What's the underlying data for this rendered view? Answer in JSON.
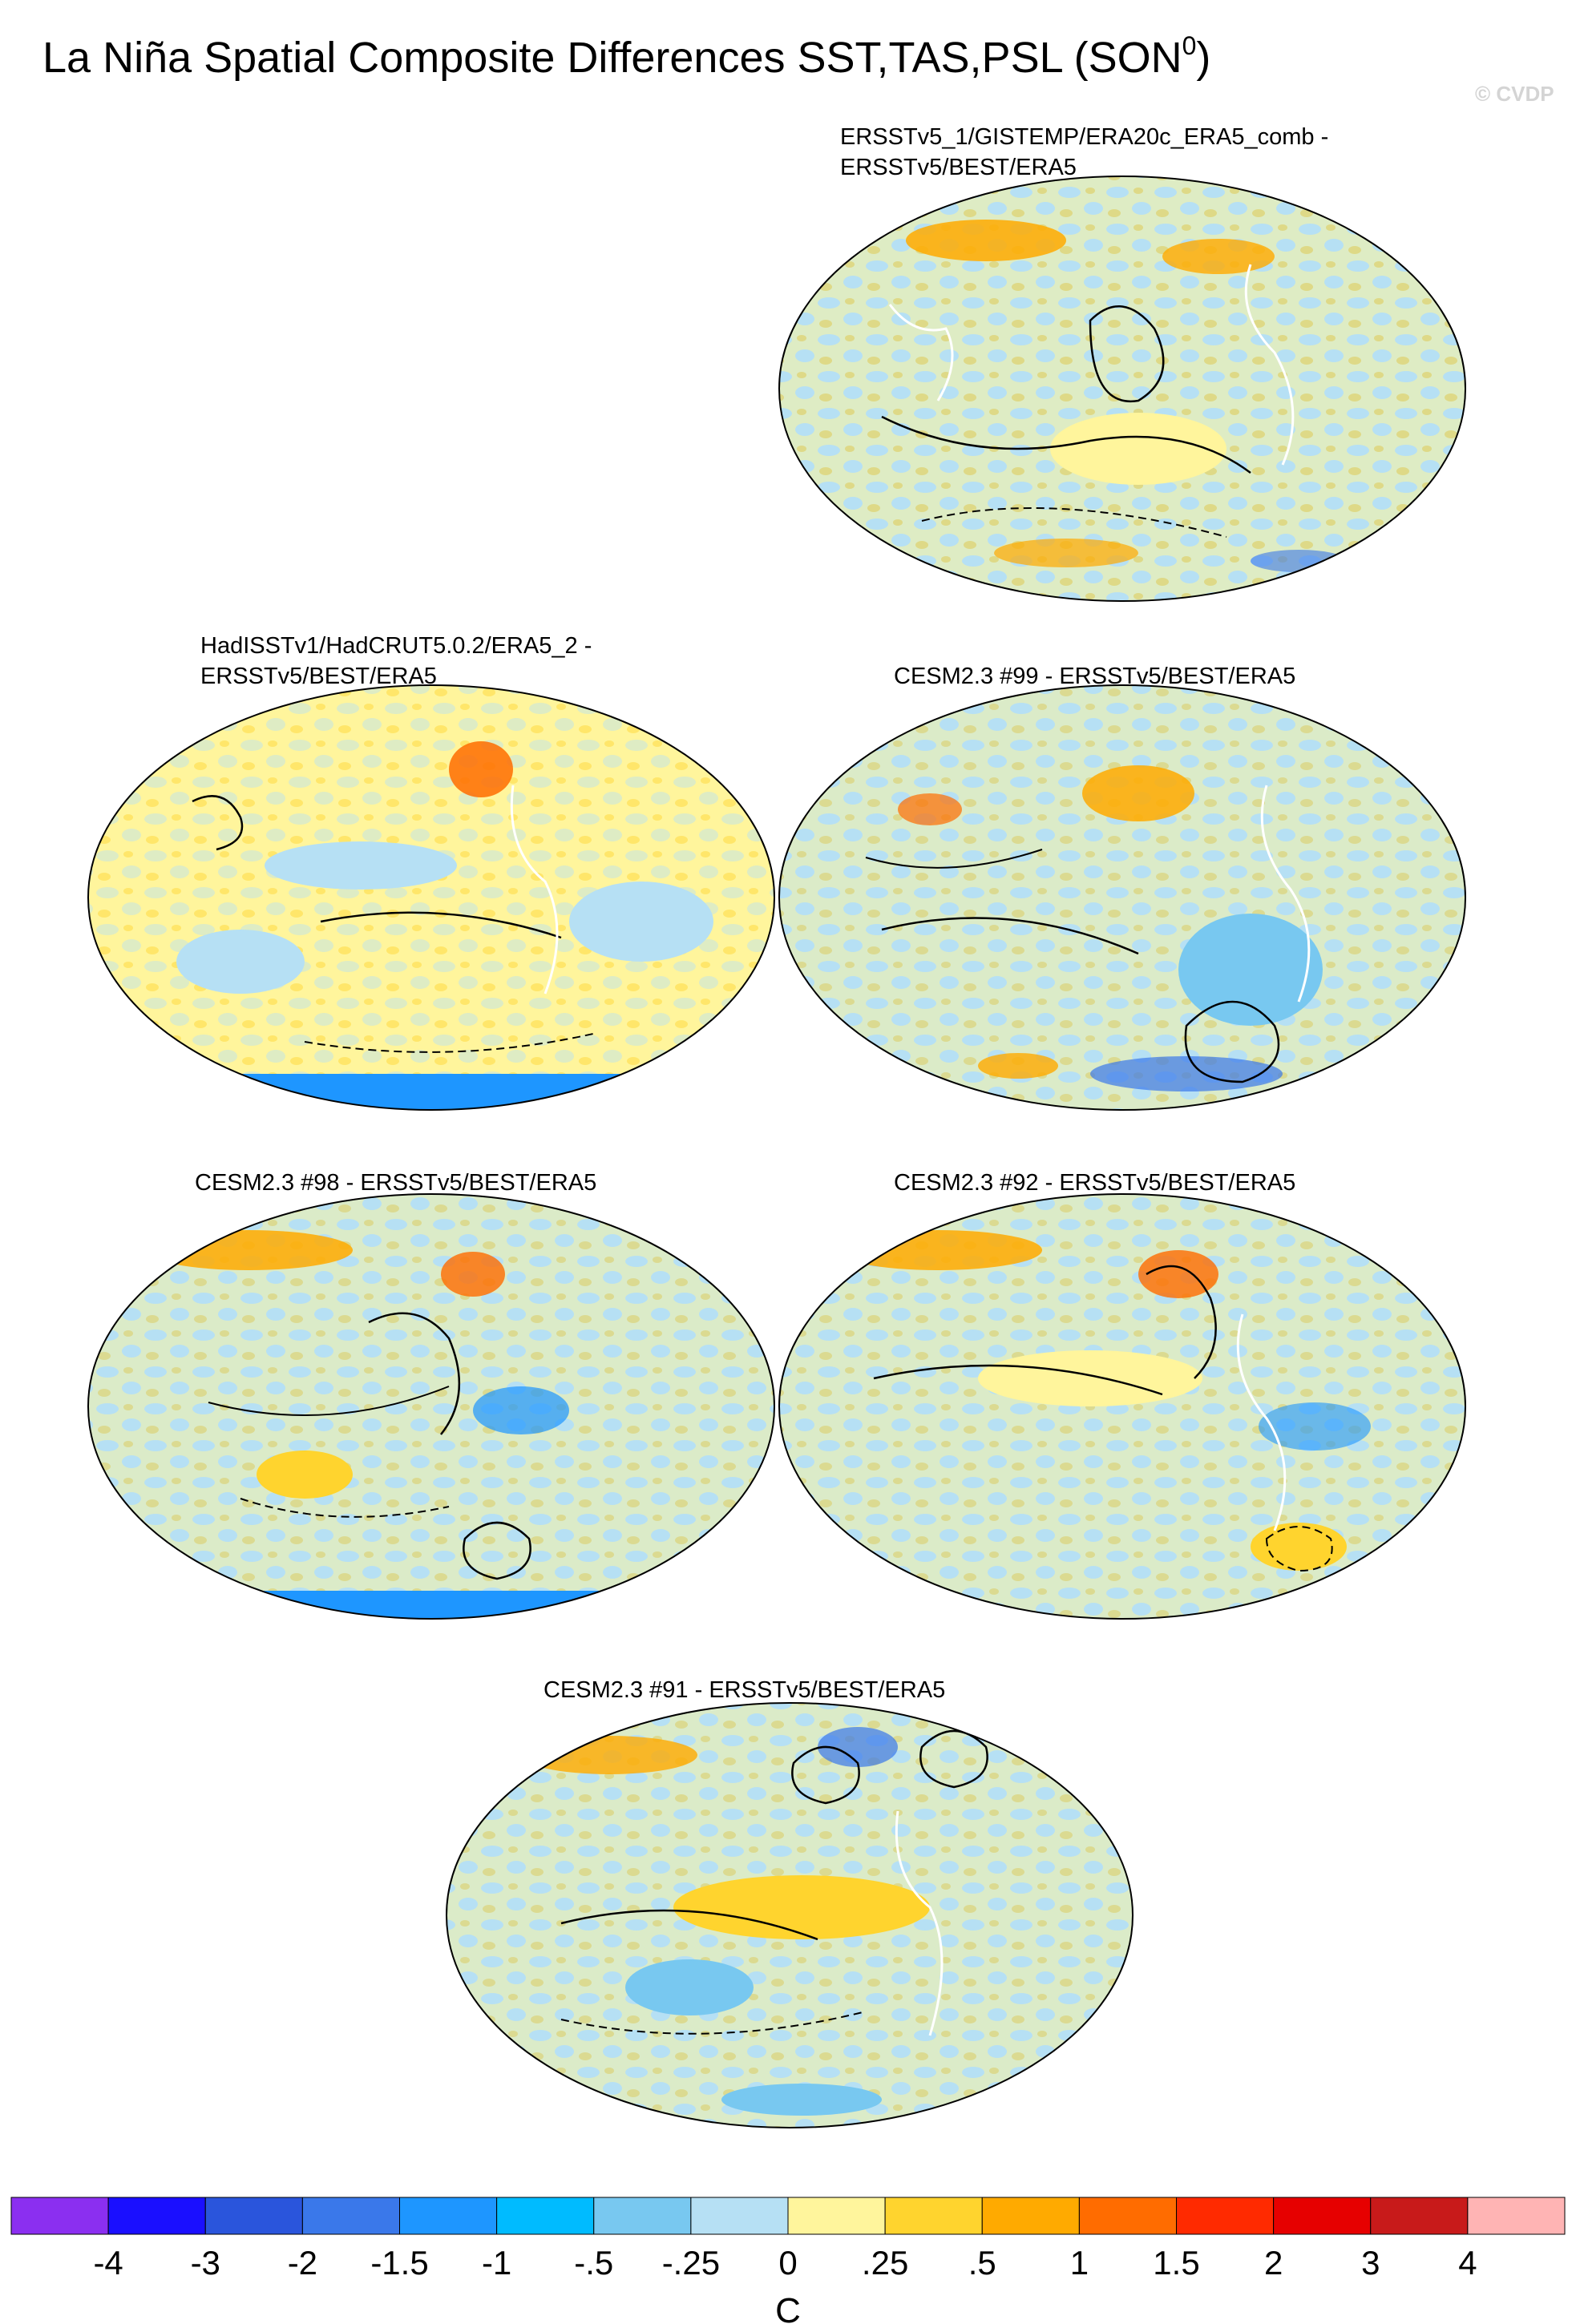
{
  "figure": {
    "title_main": "La Niña Spatial Composite Differences SST,TAS,PSL (SON",
    "title_sup": "0",
    "title_close": ")",
    "watermark": "© CVDP"
  },
  "panels": [
    {
      "id": "p1",
      "title_lines": [
        "ERSSTv5_1/GISTEMP/ERA20c_ERA5_comb -",
        "ERSSTv5/BEST/ERA5"
      ]
    },
    {
      "id": "p2",
      "title_lines": [
        "HadISSTv1/HadCRUT5.0.2/ERA5_2 -",
        "ERSSTv5/BEST/ERA5"
      ]
    },
    {
      "id": "p3",
      "title_lines": [
        "CESM2.3 #99 - ERSSTv5/BEST/ERA5"
      ]
    },
    {
      "id": "p4",
      "title_lines": [
        "CESM2.3 #98 - ERSSTv5/BEST/ERA5"
      ]
    },
    {
      "id": "p5",
      "title_lines": [
        "CESM2.3 #92 - ERSSTv5/BEST/ERA5"
      ]
    },
    {
      "id": "p6",
      "title_lines": [
        "CESM2.3 #91 - ERSSTv5/BEST/ERA5"
      ]
    }
  ],
  "colorbar": {
    "colors": [
      "#8b2ff0",
      "#1a0fff",
      "#2a55dc",
      "#3a78ea",
      "#1e96ff",
      "#00bbff",
      "#78c8f0",
      "#b6e0f4",
      "#fff59c",
      "#ffd42e",
      "#ffaa00",
      "#ff6c00",
      "#ff2a00",
      "#e60000",
      "#c81a1a",
      "#ffb4b4"
    ],
    "labels": [
      "-4",
      "-3",
      "-2",
      "-1.5",
      "-1",
      "-.5",
      "-.25",
      "0",
      ".25",
      ".5",
      "1",
      "1.5",
      "2",
      "3",
      "4"
    ],
    "units": "C"
  }
}
